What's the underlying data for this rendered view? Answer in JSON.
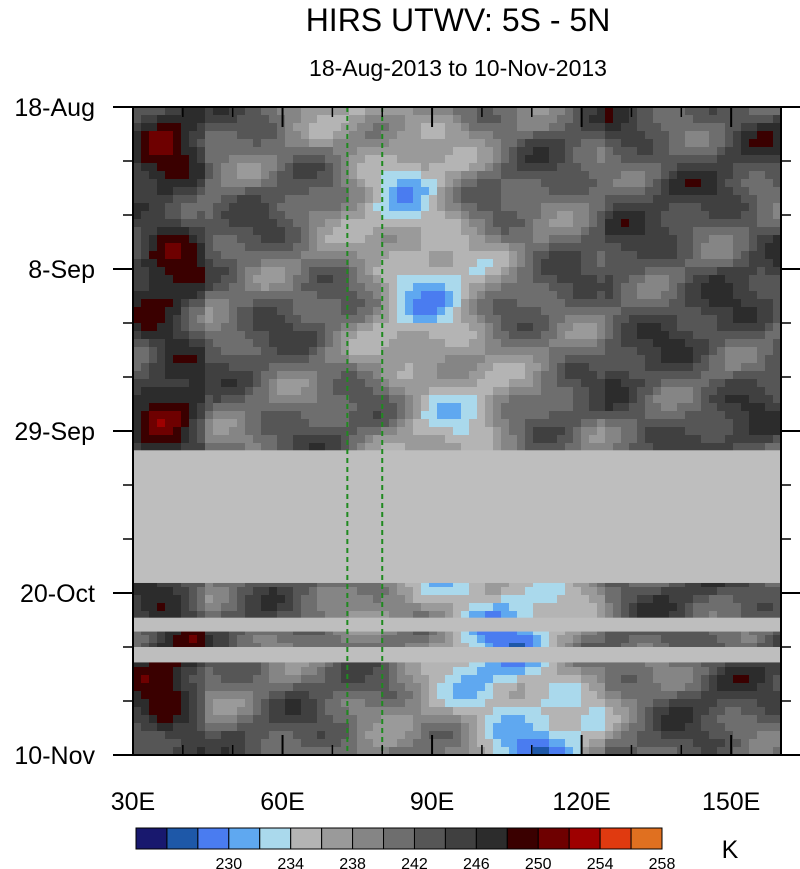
{
  "chart_data": {
    "type": "heatmap",
    "title": "HIRS UTWV: 5S - 5N",
    "subtitle": "18-Aug-2013 to 10-Nov-2013",
    "x_axis": {
      "ticks": [
        "30E",
        "60E",
        "90E",
        "120E",
        "150E"
      ],
      "tick_values": [
        30,
        60,
        90,
        120,
        150
      ],
      "range": [
        30,
        160
      ]
    },
    "y_axis": {
      "ticks": [
        "18-Aug",
        "8-Sep",
        "29-Sep",
        "20-Oct",
        "10-Nov"
      ],
      "tick_day_offsets": [
        0,
        21,
        42,
        63,
        84
      ],
      "range_days": [
        0,
        84
      ]
    },
    "reference_lines_longitude": [
      73,
      80
    ],
    "missing_data_periods_days": [
      [
        44.5,
        61.7
      ],
      [
        66.2,
        68
      ],
      [
        70,
        72
      ]
    ],
    "colorbar": {
      "unit": "K",
      "labels": [
        "230",
        "234",
        "238",
        "242",
        "246",
        "250",
        "254",
        "258"
      ],
      "colors": [
        "#18186e",
        "#1e58a8",
        "#4a7cf0",
        "#5fa8f0",
        "#aad9ec",
        "#b4b4b4",
        "#9a9a9a",
        "#858585",
        "#6e6e6e",
        "#565656",
        "#404040",
        "#2c2c2c",
        "#3a0000",
        "#6e0000",
        "#9e0000",
        "#e03a10",
        "#e07020"
      ]
    }
  }
}
